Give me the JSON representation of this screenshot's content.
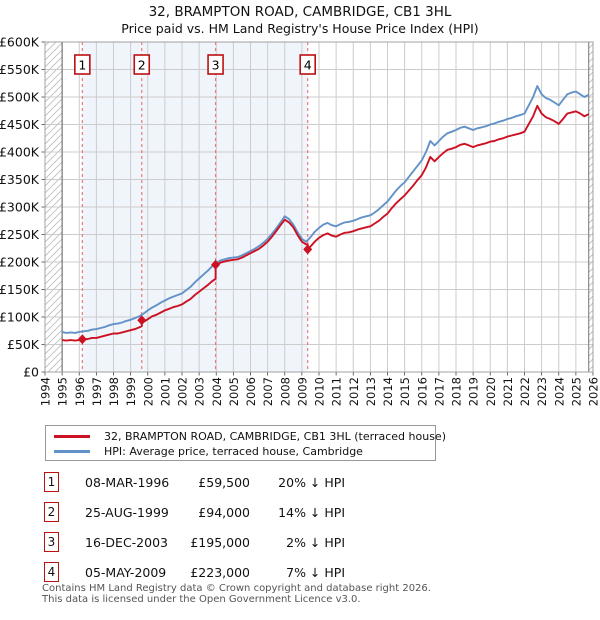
{
  "title": "32, BRAMPTON ROAD, CAMBRIDGE, CB1 3HL",
  "subtitle": "Price paid vs. HM Land Registry's House Price Index (HPI)",
  "colors": {
    "property_line": "#cc1122",
    "hpi_line": "#6292c8",
    "marker_box_border": "#bb1111",
    "dashed_line": "#e87b7b",
    "ownership_shading": "#f0f4fb",
    "grid": "#cccccc",
    "plot_border": "#a0a0a0",
    "data_boundary": "#777777",
    "hatch": "#bbbbbb"
  },
  "chart_data": {
    "type": "line",
    "title": "32, BRAMPTON ROAD, CAMBRIDGE, CB1 3HL",
    "subtitle": "Price paid vs. HM Land Registry's House Price Index (HPI)",
    "xlabel": "",
    "ylabel": "",
    "values_unit": "GBP thousands",
    "x_range": [
      1994,
      2026
    ],
    "y_range_thousands": [
      0,
      600
    ],
    "grid": true,
    "legend_position": "below",
    "x_axis": {
      "ticks": [
        1994,
        1995,
        1996,
        1997,
        1998,
        1999,
        2000,
        2001,
        2002,
        2003,
        2004,
        2005,
        2006,
        2007,
        2008,
        2009,
        2010,
        2011,
        2012,
        2013,
        2014,
        2015,
        2016,
        2017,
        2018,
        2019,
        2020,
        2021,
        2022,
        2023,
        2024,
        2025,
        2026
      ]
    },
    "y_axis": {
      "tick_values": [
        0,
        50,
        100,
        150,
        200,
        250,
        300,
        350,
        400,
        450,
        500,
        550,
        600
      ],
      "tick_labels": [
        "£0",
        "£50K",
        "£100K",
        "£150K",
        "£200K",
        "£250K",
        "£300K",
        "£350K",
        "£400K",
        "£450K",
        "£500K",
        "£550K",
        "£600K"
      ]
    },
    "data_window": {
      "start": 1995.0,
      "end": 2025.75
    },
    "ownership_shading": {
      "from": 1996.18,
      "to": 2009.34
    },
    "markers": [
      {
        "n": "1",
        "x": 1996.18,
        "value": 59.5,
        "date": "08-MAR-1996",
        "price_gbp": 59500,
        "pct_vs_hpi": "20% below"
      },
      {
        "n": "2",
        "x": 1999.65,
        "value": 94,
        "date": "25-AUG-1999",
        "price_gbp": 94000,
        "pct_vs_hpi": "14% below"
      },
      {
        "n": "3",
        "x": 2003.96,
        "value": 195,
        "date": "16-DEC-2003",
        "price_gbp": 195000,
        "pct_vs_hpi": "2% below"
      },
      {
        "n": "4",
        "x": 2009.34,
        "value": 223,
        "date": "05-MAY-2009",
        "price_gbp": 223000,
        "pct_vs_hpi": "7% below"
      }
    ],
    "series": [
      {
        "name": "HPI: Average price, terraced house, Cambridge",
        "color": "#6292c8",
        "x": [
          1995,
          1995.25,
          1995.5,
          1995.75,
          1996,
          1996.25,
          1996.5,
          1996.75,
          1997,
          1997.25,
          1997.5,
          1997.75,
          1998,
          1998.25,
          1998.5,
          1998.75,
          1999,
          1999.25,
          1999.5,
          1999.75,
          2000,
          2000.25,
          2000.5,
          2000.75,
          2001,
          2001.25,
          2001.5,
          2001.75,
          2002,
          2002.25,
          2002.5,
          2002.75,
          2003,
          2003.25,
          2003.5,
          2003.75,
          2004,
          2004.25,
          2004.5,
          2004.75,
          2005,
          2005.25,
          2005.5,
          2005.75,
          2006,
          2006.25,
          2006.5,
          2006.75,
          2007,
          2007.25,
          2007.5,
          2007.75,
          2008,
          2008.25,
          2008.5,
          2008.75,
          2009,
          2009.25,
          2009.5,
          2009.75,
          2010,
          2010.25,
          2010.5,
          2010.75,
          2011,
          2011.25,
          2011.5,
          2011.75,
          2012,
          2012.25,
          2012.5,
          2012.75,
          2013,
          2013.25,
          2013.5,
          2013.75,
          2014,
          2014.25,
          2014.5,
          2014.75,
          2015,
          2015.25,
          2015.5,
          2015.75,
          2016,
          2016.25,
          2016.5,
          2016.75,
          2017,
          2017.25,
          2017.5,
          2017.75,
          2018,
          2018.25,
          2018.5,
          2018.75,
          2019,
          2019.25,
          2019.5,
          2019.75,
          2020,
          2020.25,
          2020.5,
          2020.75,
          2021,
          2021.25,
          2021.5,
          2021.75,
          2022,
          2022.25,
          2022.5,
          2022.75,
          2023,
          2023.25,
          2023.5,
          2023.75,
          2024,
          2024.25,
          2024.5,
          2024.75,
          2025,
          2025.25,
          2025.5,
          2025.75
        ],
        "values": [
          73,
          71,
          72,
          71,
          73,
          74,
          75,
          77,
          78,
          80,
          82,
          85,
          87,
          88,
          90,
          93,
          95,
          98,
          101,
          106,
          112,
          117,
          121,
          126,
          130,
          134,
          137,
          140,
          143,
          149,
          155,
          163,
          170,
          177,
          184,
          192,
          198,
          203,
          205,
          207,
          208,
          209,
          212,
          216,
          220,
          224,
          229,
          235,
          242,
          251,
          261,
          272,
          283,
          278,
          268,
          254,
          242,
          237,
          245,
          255,
          262,
          268,
          271,
          267,
          265,
          269,
          272,
          273,
          275,
          278,
          281,
          283,
          285,
          290,
          296,
          303,
          310,
          320,
          330,
          338,
          345,
          355,
          365,
          375,
          385,
          400,
          420,
          412,
          420,
          428,
          434,
          437,
          440,
          444,
          446,
          443,
          440,
          443,
          445,
          447,
          450,
          452,
          455,
          457,
          460,
          462,
          465,
          467,
          470,
          485,
          500,
          520,
          505,
          498,
          495,
          490,
          485,
          495,
          505,
          508,
          510,
          505,
          500,
          504
        ]
      },
      {
        "name": "32, BRAMPTON ROAD, CAMBRIDGE, CB1 3HL (terraced house)",
        "color": "#cc1122",
        "x": [
          1995,
          1995.25,
          1995.5,
          1995.75,
          1996,
          1996.18,
          1996.25,
          1996.5,
          1996.75,
          1997,
          1997.25,
          1997.5,
          1997.75,
          1998,
          1998.25,
          1998.5,
          1998.75,
          1999,
          1999.25,
          1999.5,
          1999.65,
          1999.65,
          1999.75,
          2000,
          2000.25,
          2000.5,
          2000.75,
          2001,
          2001.25,
          2001.5,
          2001.75,
          2002,
          2002.25,
          2002.5,
          2002.75,
          2003,
          2003.25,
          2003.5,
          2003.75,
          2003.96,
          2003.96,
          2004,
          2004.25,
          2004.5,
          2004.75,
          2005,
          2005.25,
          2005.5,
          2005.75,
          2006,
          2006.25,
          2006.5,
          2006.75,
          2007,
          2007.25,
          2007.5,
          2007.75,
          2008,
          2008.25,
          2008.5,
          2008.75,
          2009,
          2009.25,
          2009.34,
          2009.34,
          2009.5,
          2009.75,
          2010,
          2010.25,
          2010.5,
          2010.75,
          2011,
          2011.25,
          2011.5,
          2011.75,
          2012,
          2012.25,
          2012.5,
          2012.75,
          2013,
          2013.25,
          2013.5,
          2013.75,
          2014,
          2014.25,
          2014.5,
          2014.75,
          2015,
          2015.25,
          2015.5,
          2015.75,
          2016,
          2016.25,
          2016.5,
          2016.75,
          2017,
          2017.25,
          2017.5,
          2017.75,
          2018,
          2018.25,
          2018.5,
          2018.75,
          2019,
          2019.25,
          2019.5,
          2019.75,
          2020,
          2020.25,
          2020.5,
          2020.75,
          2021,
          2021.25,
          2021.5,
          2021.75,
          2022,
          2022.25,
          2022.5,
          2022.75,
          2023,
          2023.25,
          2023.5,
          2023.75,
          2024,
          2024.25,
          2024.5,
          2024.75,
          2025,
          2025.25,
          2025.5,
          2025.75
        ],
        "values": [
          58,
          57,
          58,
          57,
          58,
          59.5,
          59,
          60,
          62,
          62,
          64,
          66,
          68,
          70,
          70,
          72,
          74,
          76,
          78,
          81,
          83.5,
          94,
          91,
          96,
          101,
          104,
          108,
          112,
          115,
          118,
          120,
          123,
          128,
          133,
          140,
          146,
          152,
          158,
          165,
          169.5,
          195,
          194,
          199,
          201,
          203,
          204,
          205,
          208,
          212,
          216,
          220,
          224,
          230,
          237,
          246,
          256,
          267,
          277,
          272,
          263,
          249,
          237,
          232,
          232.5,
          223,
          228,
          237,
          244,
          249,
          252,
          248,
          246,
          250,
          253,
          254,
          256,
          259,
          261,
          263,
          265,
          270,
          275,
          282,
          288,
          298,
          307,
          314,
          321,
          330,
          339,
          349,
          358,
          372,
          391,
          383,
          391,
          398,
          404,
          406,
          409,
          413,
          415,
          412,
          409,
          412,
          414,
          416,
          419,
          420,
          423,
          425,
          428,
          430,
          432,
          434,
          437,
          451,
          465,
          484,
          470,
          463,
          460,
          456,
          451,
          460,
          470,
          472,
          474,
          470,
          465,
          469
        ]
      }
    ]
  },
  "legend": {
    "items": [
      {
        "label": "32, BRAMPTON ROAD, CAMBRIDGE, CB1 3HL (terraced house)",
        "color": "#cc1122"
      },
      {
        "label": "HPI: Average price, terraced house, Cambridge",
        "color": "#6292c8"
      }
    ]
  },
  "transactions": [
    {
      "n": "1",
      "date": "08-MAR-1996",
      "price": "£59,500",
      "vs_hpi": "20% ↓ HPI"
    },
    {
      "n": "2",
      "date": "25-AUG-1999",
      "price": "£94,000",
      "vs_hpi": "14% ↓ HPI"
    },
    {
      "n": "3",
      "date": "16-DEC-2003",
      "price": "£195,000",
      "vs_hpi": "2% ↓ HPI"
    },
    {
      "n": "4",
      "date": "05-MAY-2009",
      "price": "£223,000",
      "vs_hpi": "7% ↓ HPI"
    }
  ],
  "footer": {
    "line1": "Contains HM Land Registry data © Crown copyright and database right 2026.",
    "line2": "This data is licensed under the Open Government Licence v3.0."
  }
}
